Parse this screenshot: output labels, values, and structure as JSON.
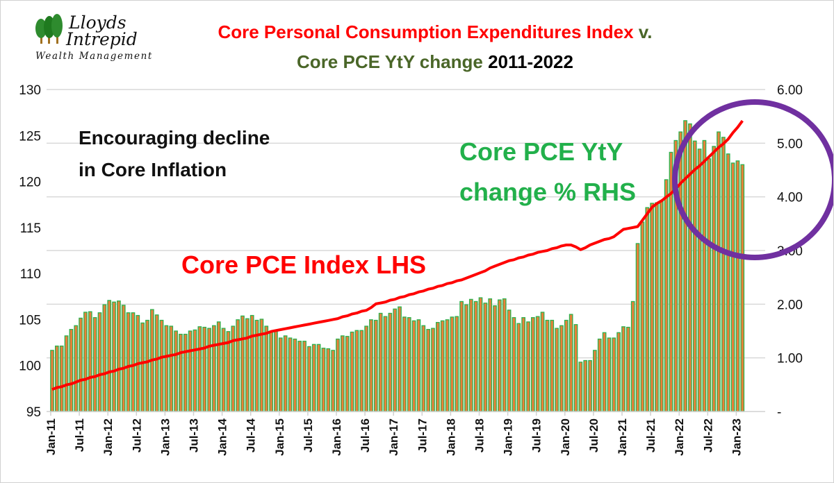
{
  "logo": {
    "line1": "Lloyds",
    "line2": "Intrepid",
    "line3": "Wealth Management"
  },
  "colors": {
    "index_line": "#ff0000",
    "bar_fill": "#e8803a",
    "bar_edge": "#2db24e",
    "title_red": "#ff0000",
    "title_green": "#4a6628",
    "annotation_green": "#22b04b",
    "circle": "#7030a0",
    "grid": "#d9d9d9"
  },
  "chart_data": {
    "type": "bar+line",
    "title_line1": "Core Personal Consumption Expenditures Index",
    "title_line1_suffix": "v.",
    "title_line2_green": "Core PCE YtY change",
    "title_line2_black": "2011-2022",
    "annotations": {
      "decline_line1": "Encouraging decline",
      "decline_line2": "in Core Inflation",
      "yty_line1": "Core PCE YtY",
      "yty_line2": "change % RHS",
      "index_label": "Core PCE Index LHS"
    },
    "x_start": "Jan-11",
    "x_ticks": [
      "Jan-11",
      "Jul-11",
      "Jan-12",
      "Jul-12",
      "Jan-13",
      "Jul-13",
      "Jan-14",
      "Jul-14",
      "Jan-15",
      "Jul-15",
      "Jan-16",
      "Jul-16",
      "Jan-17",
      "Jul-17",
      "Jan-18",
      "Jul-18",
      "Jan-19",
      "Jul-19",
      "Jan-20",
      "Jul-20",
      "Jan-21",
      "Jul-21",
      "Jan-22",
      "Jul-22",
      "Jan-23"
    ],
    "y_left": {
      "range": [
        95,
        130
      ],
      "ticks": [
        "95",
        "100",
        "105",
        "110",
        "115",
        "120",
        "125",
        "130"
      ]
    },
    "y_right": {
      "range": [
        0,
        6
      ],
      "ticks": [
        "-",
        "1.00",
        "2.00",
        "3.00",
        "4.00",
        "5.00",
        "6.00"
      ]
    },
    "grid": "horizontal",
    "series": [
      {
        "name": "Core PCE YtY change % RHS",
        "type": "bar",
        "axis": "right",
        "values": [
          1.14,
          1.22,
          1.22,
          1.41,
          1.53,
          1.6,
          1.74,
          1.85,
          1.86,
          1.75,
          1.84,
          1.99,
          2.07,
          2.04,
          2.06,
          1.98,
          1.84,
          1.84,
          1.79,
          1.65,
          1.7,
          1.9,
          1.8,
          1.7,
          1.6,
          1.59,
          1.5,
          1.44,
          1.44,
          1.5,
          1.52,
          1.58,
          1.57,
          1.55,
          1.6,
          1.67,
          1.55,
          1.49,
          1.59,
          1.71,
          1.78,
          1.73,
          1.79,
          1.7,
          1.72,
          1.59,
          1.49,
          1.49,
          1.37,
          1.41,
          1.37,
          1.35,
          1.31,
          1.31,
          1.21,
          1.25,
          1.25,
          1.18,
          1.17,
          1.14,
          1.35,
          1.41,
          1.4,
          1.48,
          1.51,
          1.51,
          1.59,
          1.71,
          1.7,
          1.83,
          1.77,
          1.83,
          1.91,
          1.95,
          1.76,
          1.75,
          1.69,
          1.71,
          1.6,
          1.53,
          1.55,
          1.66,
          1.69,
          1.71,
          1.76,
          1.77,
          2.05,
          1.99,
          2.09,
          2.05,
          2.12,
          2.02,
          2.1,
          1.97,
          2.08,
          2.1,
          1.89,
          1.75,
          1.64,
          1.75,
          1.67,
          1.75,
          1.77,
          1.85,
          1.7,
          1.7,
          1.55,
          1.6,
          1.7,
          1.81,
          1.62,
          0.92,
          0.95,
          0.95,
          1.14,
          1.35,
          1.47,
          1.37,
          1.37,
          1.47,
          1.58,
          1.57,
          2.05,
          3.13,
          3.53,
          3.8,
          3.88,
          3.89,
          3.93,
          4.32,
          4.83,
          5.05,
          5.21,
          5.42,
          5.36,
          5.04,
          4.89,
          5.05,
          4.71,
          4.94,
          5.21,
          5.11,
          4.8,
          4.63,
          4.67,
          4.6
        ]
      },
      {
        "name": "Core PCE Index LHS",
        "type": "line",
        "axis": "left",
        "values": [
          97.4,
          97.6,
          97.7,
          97.9,
          98.0,
          98.2,
          98.4,
          98.5,
          98.7,
          98.8,
          99.0,
          99.1,
          99.3,
          99.4,
          99.6,
          99.7,
          99.9,
          100.0,
          100.2,
          100.3,
          100.4,
          100.6,
          100.7,
          100.9,
          101.0,
          101.1,
          101.2,
          101.4,
          101.5,
          101.6,
          101.7,
          101.8,
          101.9,
          102.1,
          102.2,
          102.3,
          102.4,
          102.5,
          102.7,
          102.8,
          102.9,
          103.0,
          103.2,
          103.3,
          103.4,
          103.5,
          103.7,
          103.8,
          103.9,
          104.0,
          104.1,
          104.2,
          104.3,
          104.4,
          104.5,
          104.6,
          104.7,
          104.8,
          104.9,
          105.0,
          105.1,
          105.3,
          105.4,
          105.6,
          105.7,
          105.9,
          106.0,
          106.3,
          106.7,
          106.8,
          106.9,
          107.1,
          107.2,
          107.4,
          107.5,
          107.7,
          107.8,
          108.0,
          108.1,
          108.3,
          108.4,
          108.6,
          108.7,
          108.9,
          109.0,
          109.2,
          109.3,
          109.5,
          109.7,
          109.9,
          110.1,
          110.3,
          110.6,
          110.8,
          111.0,
          111.2,
          111.4,
          111.5,
          111.7,
          111.8,
          112.0,
          112.1,
          112.3,
          112.4,
          112.5,
          112.7,
          112.8,
          113.0,
          113.1,
          113.1,
          112.9,
          112.6,
          112.8,
          113.1,
          113.3,
          113.5,
          113.7,
          113.8,
          114.0,
          114.4,
          114.8,
          114.9,
          115.0,
          115.1,
          115.8,
          116.5,
          117.2,
          117.6,
          117.9,
          118.3,
          118.7,
          119.2,
          119.8,
          120.3,
          120.8,
          121.3,
          121.7,
          122.2,
          122.7,
          123.2,
          123.7,
          124.1,
          124.6,
          125.3,
          125.9,
          126.6
        ]
      }
    ]
  }
}
